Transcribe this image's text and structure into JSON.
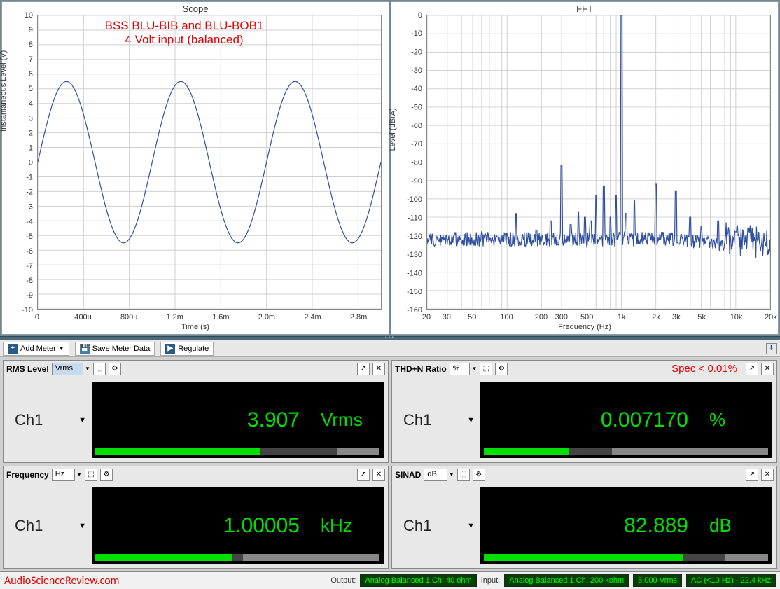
{
  "scope": {
    "title": "Scope",
    "xlabel": "Time (s)",
    "ylabel": "Instantaneous Level (V)",
    "annotation_line1": "BSS BLU-BIB and BLU-BOB1",
    "annotation_line2": "4 Volt input (balanced)",
    "ylim": [
      -10,
      10
    ],
    "ytick_step": 1,
    "xlim": [
      0,
      0.003
    ],
    "xticks": [
      0,
      0.0004,
      0.0008,
      0.0012,
      0.0016,
      0.002,
      0.0024,
      0.0028
    ],
    "xtick_labels": [
      "0",
      "400u",
      "800u",
      "1.2m",
      "1.6m",
      "2.0m",
      "2.4m",
      "2.8m"
    ],
    "amplitude": 5.5,
    "frequency_hz": 1000,
    "line_color": "#3050a0",
    "grid_color": "#d0d0d0",
    "background_color": "#ffffff"
  },
  "fft": {
    "title": "FFT",
    "xlabel": "Frequency (Hz)",
    "ylabel": "Level (dBrA)",
    "ylim": [
      -160,
      0
    ],
    "ytick_step": 10,
    "xlim": [
      20,
      20000
    ],
    "xscale": "log",
    "xticks": [
      20,
      30,
      50,
      100,
      200,
      300,
      500,
      1000,
      2000,
      3000,
      5000,
      10000,
      20000
    ],
    "xtick_labels": [
      "20",
      "30",
      "50",
      "100",
      "200",
      "300",
      "500",
      "1k",
      "2k",
      "3k",
      "5k",
      "10k",
      "20k"
    ],
    "line_color": "#2a4090",
    "grid_color": "#d8d8d8",
    "background_color": "#ffffff",
    "fundamental_hz": 1000,
    "fundamental_db": 0,
    "noise_floor_db": -122,
    "harmonics": [
      {
        "hz": 60,
        "db": -118
      },
      {
        "hz": 120,
        "db": -108
      },
      {
        "hz": 180,
        "db": -117
      },
      {
        "hz": 240,
        "db": -112
      },
      {
        "hz": 300,
        "db": -82
      },
      {
        "hz": 360,
        "db": -114
      },
      {
        "hz": 420,
        "db": -107
      },
      {
        "hz": 480,
        "db": -110
      },
      {
        "hz": 540,
        "db": -112
      },
      {
        "hz": 600,
        "db": -98
      },
      {
        "hz": 700,
        "db": -93
      },
      {
        "hz": 800,
        "db": -110
      },
      {
        "hz": 900,
        "db": -98
      },
      {
        "hz": 1100,
        "db": -108
      },
      {
        "hz": 1300,
        "db": -101
      },
      {
        "hz": 2000,
        "db": -92
      },
      {
        "hz": 3000,
        "db": -96
      },
      {
        "hz": 4000,
        "db": -110
      },
      {
        "hz": 5000,
        "db": -115
      },
      {
        "hz": 7000,
        "db": -112
      },
      {
        "hz": 10000,
        "db": -118
      }
    ]
  },
  "toolbar": {
    "add_meter": "Add Meter",
    "save_meter_data": "Save Meter Data",
    "regulate": "Regulate"
  },
  "meters": {
    "rms": {
      "title": "RMS Level",
      "unit_select": "Vrms",
      "channel": "Ch1",
      "value": "3.907",
      "unit": "Vrms",
      "bar_pct": 58,
      "bar_grey_pct": 15
    },
    "thdn": {
      "title": "THD+N Ratio",
      "unit_select": "%",
      "spec": "Spec < 0.01%",
      "channel": "Ch1",
      "value": "0.007170",
      "unit": "%",
      "bar_pct": 30,
      "bar_grey_pct": 55
    },
    "freq": {
      "title": "Frequency",
      "unit_select": "Hz",
      "channel": "Ch1",
      "value": "1.00005",
      "unit": "kHz",
      "bar_pct": 48,
      "bar_grey_pct": 48
    },
    "sinad": {
      "title": "SINAD",
      "unit_select": "dB",
      "channel": "Ch1",
      "value": "82.889",
      "unit": "dB",
      "bar_pct": 70,
      "bar_grey_pct": 15
    }
  },
  "statusbar": {
    "watermark": "AudioScienceReview.com",
    "output_label": "Output:",
    "output_value": "Analog Balanced 1 Ch, 40 ohm",
    "input_label": "Input:",
    "input_value": "Analog Balanced 1 Ch, 200 kohm",
    "level": "5.000 Vrms",
    "bw": "AC (<10 Hz) - 22.4 kHz"
  }
}
